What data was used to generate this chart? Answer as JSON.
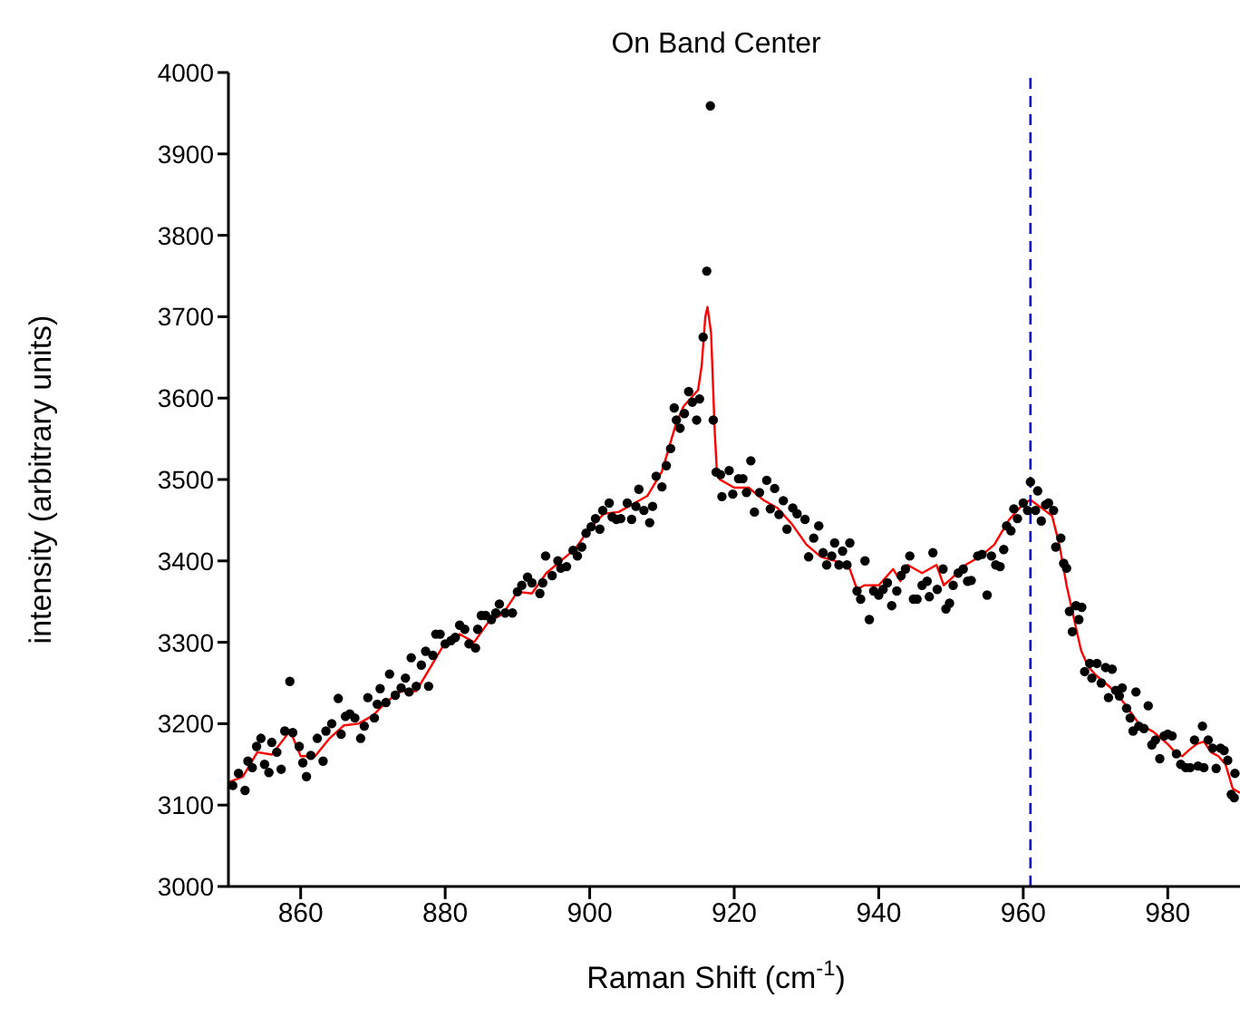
{
  "chart_data": {
    "type": "scatter",
    "title": "On Band Center",
    "xlabel": "Raman Shift (cm$^{-1}$)",
    "ylabel": "intensity (arbitrary units)",
    "xlim": [
      850,
      990
    ],
    "xticks": [
      860,
      880,
      900,
      920,
      940,
      960,
      980
    ],
    "ylim": [
      3000,
      4000
    ],
    "yticks": [
      3000,
      3100,
      3200,
      3300,
      3400,
      3500,
      3600,
      3700,
      3800,
      3900,
      4000
    ],
    "grid": false,
    "legend": false,
    "ref_lines": [
      {
        "axis": "x",
        "value": 961,
        "color": "#0000cc",
        "line_style": "dashed"
      }
    ],
    "series": [
      {
        "color": "#000000",
        "marker": "circle",
        "x": [
          850.6,
          851.4,
          852.3,
          852.7,
          853.3,
          853.9,
          854.5,
          855.0,
          855.6,
          856.0,
          856.7,
          857.3,
          857.8,
          858.5,
          858.9,
          859.8,
          860.3,
          860.8,
          861.4,
          862.3,
          863.1,
          863.5,
          864.3,
          865.2,
          865.6,
          866.2,
          866.8,
          867.5,
          868.3,
          868.8,
          869.3,
          870.2,
          870.6,
          871.0,
          871.8,
          872.3,
          873.1,
          873.9,
          874.5,
          875.0,
          875.3,
          876.0,
          876.7,
          877.3,
          877.7,
          878.3,
          878.7,
          879.3,
          880.0,
          880.8,
          881.4,
          882.0,
          882.7,
          883.3,
          884.2,
          884.5,
          885.0,
          885.6,
          886.4,
          887.0,
          887.5,
          888.3,
          889.3,
          890.0,
          890.6,
          891.4,
          892.0,
          893.1,
          893.5,
          893.9,
          894.8,
          895.6,
          896.0,
          896.8,
          897.7,
          898.3,
          898.9,
          899.5,
          900.2,
          900.8,
          901.4,
          901.8,
          902.7,
          903.1,
          903.7,
          904.3,
          905.2,
          905.8,
          906.4,
          906.8,
          907.5,
          908.3,
          908.7,
          909.2,
          910.0,
          910.6,
          911.2,
          911.7,
          912.0,
          912.5,
          913.1,
          913.7,
          914.2,
          914.8,
          915.2,
          915.7,
          916.2,
          916.7,
          917.1,
          917.5,
          918.1,
          918.3,
          919.3,
          919.8,
          920.6,
          921.2,
          921.7,
          922.3,
          922.8,
          923.5,
          924.5,
          925.0,
          925.6,
          926.2,
          926.8,
          927.3,
          928.1,
          928.7,
          929.8,
          930.3,
          931.0,
          931.7,
          932.3,
          932.8,
          933.5,
          933.9,
          934.5,
          935.0,
          935.6,
          936.0,
          937.0,
          937.5,
          938.1,
          938.7,
          939.3,
          940.0,
          940.6,
          941.2,
          941.8,
          942.5,
          943.1,
          943.7,
          944.3,
          944.8,
          945.3,
          946.0,
          946.7,
          947.0,
          947.5,
          948.1,
          948.9,
          949.3,
          949.8,
          950.3,
          951.0,
          951.7,
          952.3,
          952.8,
          953.7,
          954.3,
          955.0,
          955.6,
          956.2,
          956.8,
          957.3,
          957.7,
          958.3,
          958.7,
          959.2,
          960.0,
          960.6,
          961.0,
          961.7,
          962.0,
          962.5,
          963.1,
          963.5,
          964.2,
          964.5,
          965.2,
          965.6,
          966.0,
          966.4,
          966.8,
          967.3,
          967.7,
          968.1,
          968.5,
          969.2,
          969.5,
          970.2,
          970.8,
          971.4,
          971.8,
          972.3,
          972.8,
          973.3,
          973.7,
          974.3,
          974.8,
          975.2,
          975.6,
          976.0,
          976.7,
          977.3,
          977.8,
          978.3,
          978.9,
          979.5,
          980.0,
          980.6,
          981.2,
          981.8,
          982.5,
          983.1,
          983.7,
          984.2,
          984.8,
          985.0,
          985.6,
          986.2,
          986.7,
          987.3,
          987.8,
          988.3,
          988.8,
          989.2,
          989.3
        ],
        "values": [
          3124,
          3139,
          3118,
          3154,
          3146,
          3172,
          3182,
          3150,
          3140,
          3177,
          3165,
          3144,
          3191,
          3252,
          3189,
          3172,
          3152,
          3135,
          3161,
          3182,
          3154,
          3191,
          3200,
          3231,
          3187,
          3209,
          3212,
          3207,
          3182,
          3197,
          3232,
          3207,
          3224,
          3243,
          3226,
          3261,
          3235,
          3244,
          3256,
          3239,
          3281,
          3246,
          3272,
          3289,
          3246,
          3284,
          3310,
          3310,
          3298,
          3302,
          3306,
          3321,
          3316,
          3298,
          3293,
          3316,
          3333,
          3333,
          3328,
          3336,
          3347,
          3336,
          3336,
          3362,
          3370,
          3380,
          3373,
          3360,
          3373,
          3406,
          3382,
          3400,
          3391,
          3393,
          3413,
          3406,
          3417,
          3434,
          3442,
          3452,
          3439,
          3462,
          3471,
          3454,
          3451,
          3452,
          3471,
          3451,
          3467,
          3488,
          3462,
          3447,
          3467,
          3504,
          3491,
          3517,
          3538,
          3588,
          3573,
          3563,
          3581,
          3608,
          3595,
          3573,
          3599,
          3675,
          3756,
          3959,
          3573,
          3509,
          3506,
          3479,
          3511,
          3482,
          3501,
          3501,
          3484,
          3523,
          3460,
          3484,
          3499,
          3464,
          3489,
          3457,
          3474,
          3439,
          3465,
          3458,
          3451,
          3405,
          3428,
          3443,
          3410,
          3395,
          3406,
          3422,
          3395,
          3412,
          3395,
          3422,
          3363,
          3353,
          3400,
          3328,
          3363,
          3358,
          3365,
          3373,
          3345,
          3363,
          3382,
          3390,
          3406,
          3353,
          3353,
          3370,
          3375,
          3356,
          3410,
          3365,
          3390,
          3341,
          3348,
          3370,
          3385,
          3390,
          3375,
          3376,
          3406,
          3408,
          3358,
          3406,
          3395,
          3393,
          3414,
          3443,
          3437,
          3464,
          3452,
          3471,
          3462,
          3497,
          3462,
          3486,
          3449,
          3469,
          3471,
          3462,
          3417,
          3428,
          3397,
          3391,
          3338,
          3313,
          3345,
          3328,
          3343,
          3264,
          3274,
          3256,
          3274,
          3250,
          3269,
          3232,
          3267,
          3241,
          3234,
          3244,
          3219,
          3207,
          3191,
          3239,
          3197,
          3194,
          3222,
          3174,
          3180,
          3157,
          3185,
          3187,
          3185,
          3163,
          3150,
          3146,
          3146,
          3180,
          3148,
          3197,
          3146,
          3180,
          3170,
          3145,
          3170,
          3167,
          3155,
          3113,
          3109,
          3139
        ]
      },
      {
        "type": "line",
        "color": "#ff0000",
        "marker": "none",
        "line_style": "solid",
        "x": [
          850,
          852,
          854,
          856,
          858,
          858.5,
          860,
          862,
          864,
          866,
          868,
          870,
          872,
          874,
          876,
          878,
          880,
          882,
          884,
          886,
          888,
          890,
          892,
          894,
          896,
          898,
          900,
          902,
          904,
          906,
          908,
          910,
          911,
          912,
          913,
          914,
          915,
          915.5,
          916,
          916.3,
          916.8,
          917.3,
          917.6,
          918,
          920,
          922,
          924,
          926,
          928,
          930,
          932,
          934,
          936,
          937,
          938,
          940,
          942,
          943,
          944,
          946,
          948,
          949,
          950,
          952,
          954,
          956,
          958,
          960,
          961,
          963,
          964,
          965,
          966,
          967,
          968,
          969,
          970,
          972,
          974,
          976,
          978,
          980,
          981,
          982,
          983,
          984,
          985,
          986,
          987,
          988,
          989,
          990
        ],
        "values": [
          3128,
          3135,
          3165,
          3162,
          3185,
          3192,
          3160,
          3160,
          3182,
          3198,
          3200,
          3210,
          3228,
          3240,
          3240,
          3270,
          3300,
          3310,
          3300,
          3325,
          3335,
          3362,
          3360,
          3385,
          3400,
          3415,
          3440,
          3458,
          3460,
          3470,
          3480,
          3510,
          3540,
          3570,
          3590,
          3600,
          3610,
          3640,
          3700,
          3712,
          3680,
          3560,
          3510,
          3500,
          3490,
          3490,
          3475,
          3465,
          3445,
          3420,
          3405,
          3400,
          3390,
          3365,
          3370,
          3370,
          3390,
          3375,
          3395,
          3385,
          3395,
          3370,
          3378,
          3395,
          3405,
          3420,
          3450,
          3470,
          3475,
          3462,
          3455,
          3420,
          3370,
          3330,
          3290,
          3270,
          3260,
          3245,
          3225,
          3200,
          3190,
          3175,
          3165,
          3160,
          3168,
          3175,
          3178,
          3165,
          3160,
          3150,
          3120,
          3115
        ]
      }
    ]
  }
}
